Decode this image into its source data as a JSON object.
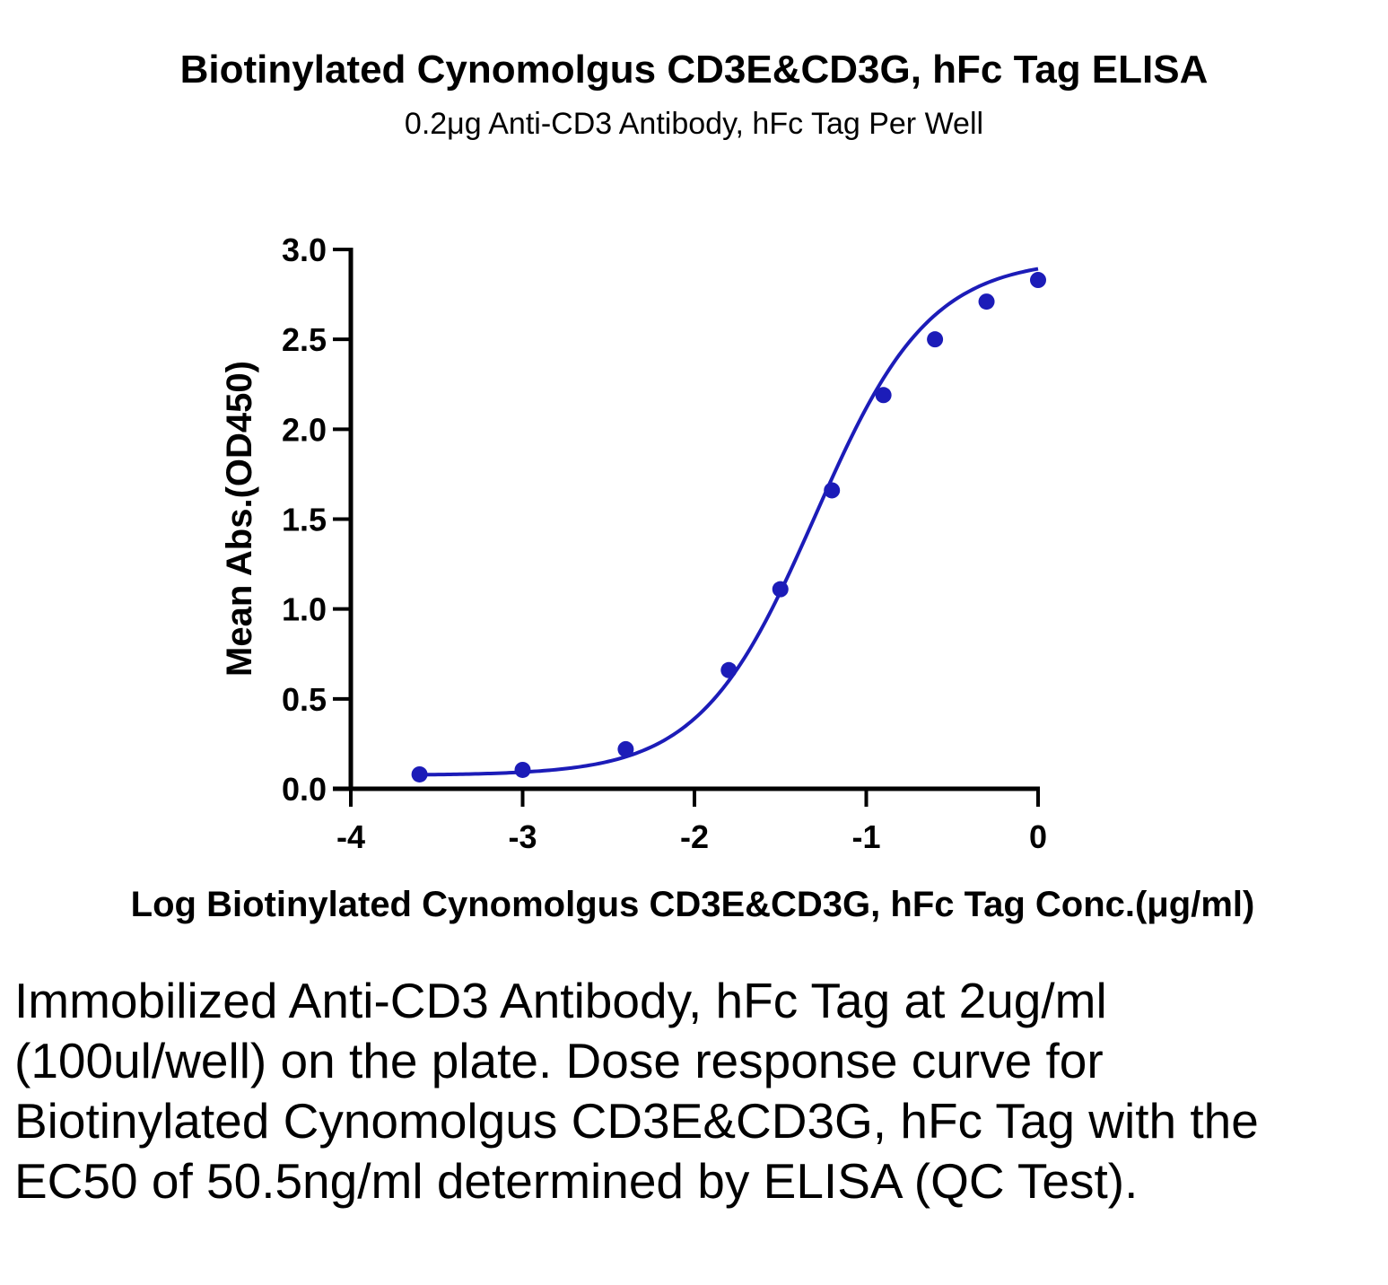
{
  "chart_data": {
    "type": "scatter",
    "title": "Biotinylated Cynomolgus CD3E&CD3G, hFc Tag ELISA",
    "subtitle": "0.2μg Anti-CD3 Antibody, hFc Tag Per Well",
    "xlabel": "Log Biotinylated Cynomolgus CD3E&CD3G, hFc Tag Conc.(μg/ml)",
    "ylabel": "Mean Abs.(OD450)",
    "xlim": [
      -4,
      0
    ],
    "ylim": [
      0,
      3
    ],
    "x_ticks": [
      -4,
      -3,
      -2,
      -1,
      0
    ],
    "y_ticks": [
      0,
      0.5,
      1,
      1.5,
      2,
      2.5,
      3
    ],
    "x_tick_labels": [
      "-4",
      "-3",
      "-2",
      "-1",
      "0"
    ],
    "y_tick_labels": [
      "0.0",
      "0.5",
      "1.0",
      "1.5",
      "2.0",
      "2.5",
      "3.0"
    ],
    "grid": false,
    "legend": "none",
    "color": "#1c1cb8",
    "series": [
      {
        "x": [
          -3.6,
          -3.0,
          -2.4,
          -1.8,
          -1.5,
          -1.2,
          -0.9,
          -0.6,
          -0.3,
          0.0
        ],
        "y": [
          0.08,
          0.105,
          0.22,
          0.66,
          1.11,
          1.66,
          2.19,
          2.5,
          2.71,
          2.83
        ]
      }
    ],
    "fit_curve": {
      "type": "4PL",
      "bottom": 0.075,
      "top": 2.95,
      "log_ec50": -1.3,
      "hill_slope": 1.3
    }
  },
  "caption": "Immobilized Anti-CD3 Antibody, hFc Tag at 2ug/ml (100ul/well) on the plate. Dose response curve for Biotinylated Cynomolgus CD3E&CD3G, hFc Tag with the EC50 of 50.5ng/ml determined by ELISA (QC Test)."
}
